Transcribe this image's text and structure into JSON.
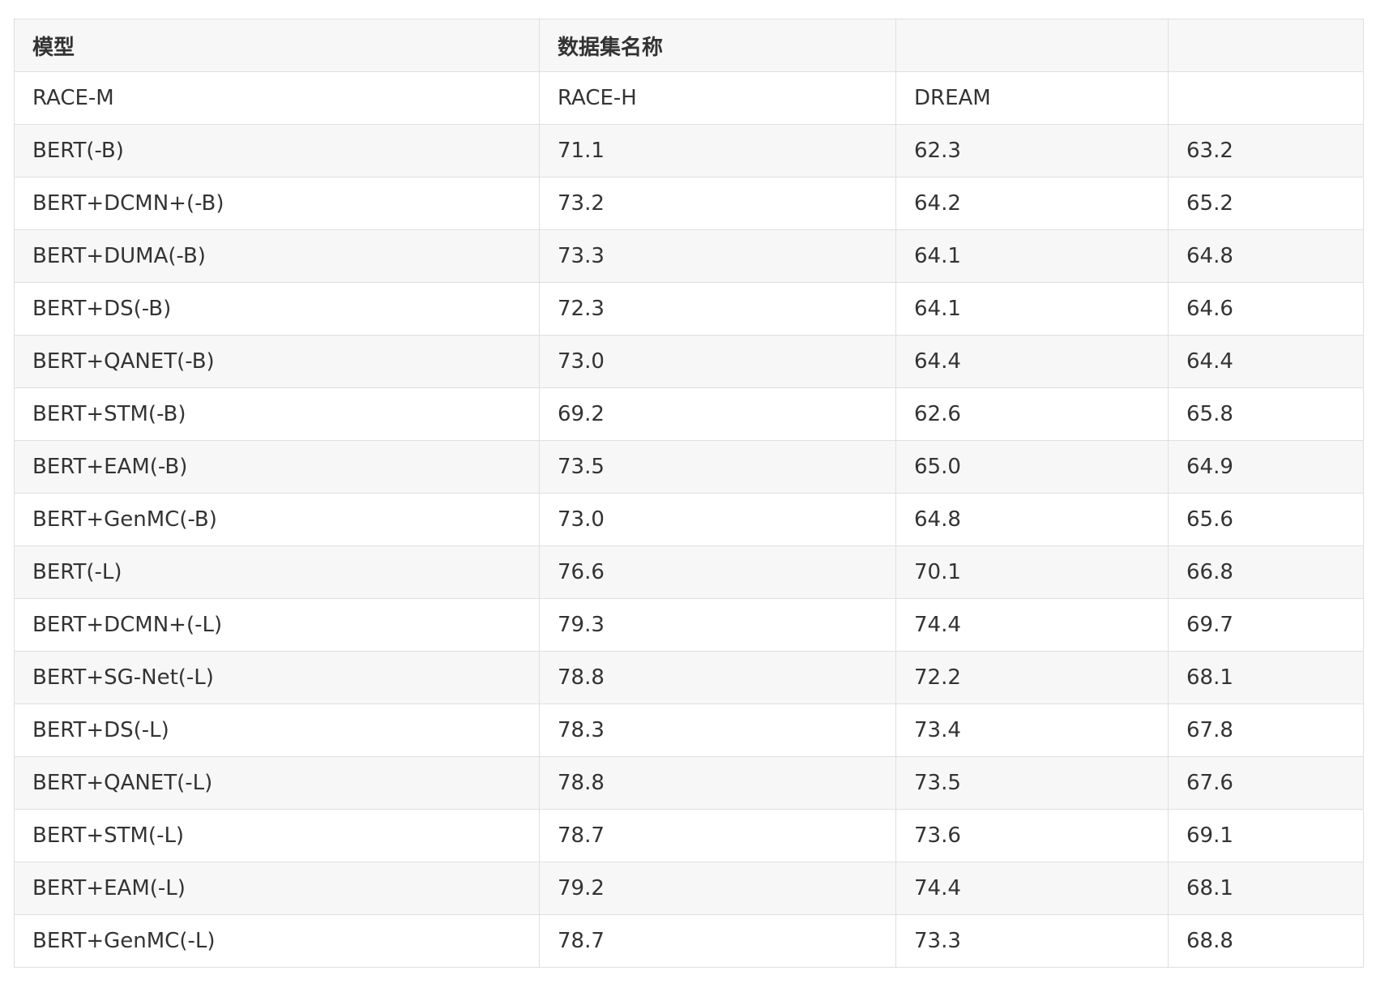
{
  "table": {
    "header": [
      "模型",
      "数据集名称",
      "",
      ""
    ],
    "rows": [
      [
        "RACE-M",
        "RACE-H",
        "DREAM",
        ""
      ],
      [
        "BERT(-B)",
        "71.1",
        "62.3",
        "63.2"
      ],
      [
        "BERT+DCMN+(-B)",
        "73.2",
        "64.2",
        "65.2"
      ],
      [
        "BERT+DUMA(-B)",
        "73.3",
        "64.1",
        "64.8"
      ],
      [
        "BERT+DS(-B)",
        "72.3",
        "64.1",
        "64.6"
      ],
      [
        "BERT+QANET(-B)",
        "73.0",
        "64.4",
        "64.4"
      ],
      [
        "BERT+STM(-B)",
        "69.2",
        "62.6",
        "65.8"
      ],
      [
        "BERT+EAM(-B)",
        "73.5",
        "65.0",
        "64.9"
      ],
      [
        "BERT+GenMC(-B)",
        "73.0",
        "64.8",
        "65.6"
      ],
      [
        "BERT(-L)",
        "76.6",
        "70.1",
        "66.8"
      ],
      [
        "BERT+DCMN+(-L)",
        "79.3",
        "74.4",
        "69.7"
      ],
      [
        "BERT+SG-Net(-L)",
        "78.8",
        "72.2",
        "68.1"
      ],
      [
        "BERT+DS(-L)",
        "78.3",
        "73.4",
        "67.8"
      ],
      [
        "BERT+QANET(-L)",
        "78.8",
        "73.5",
        "67.6"
      ],
      [
        "BERT+STM(-L)",
        "78.7",
        "73.6",
        "69.1"
      ],
      [
        "BERT+EAM(-L)",
        "79.2",
        "74.4",
        "68.1"
      ],
      [
        "BERT+GenMC(-L)",
        "78.7",
        "73.3",
        "68.8"
      ]
    ]
  }
}
